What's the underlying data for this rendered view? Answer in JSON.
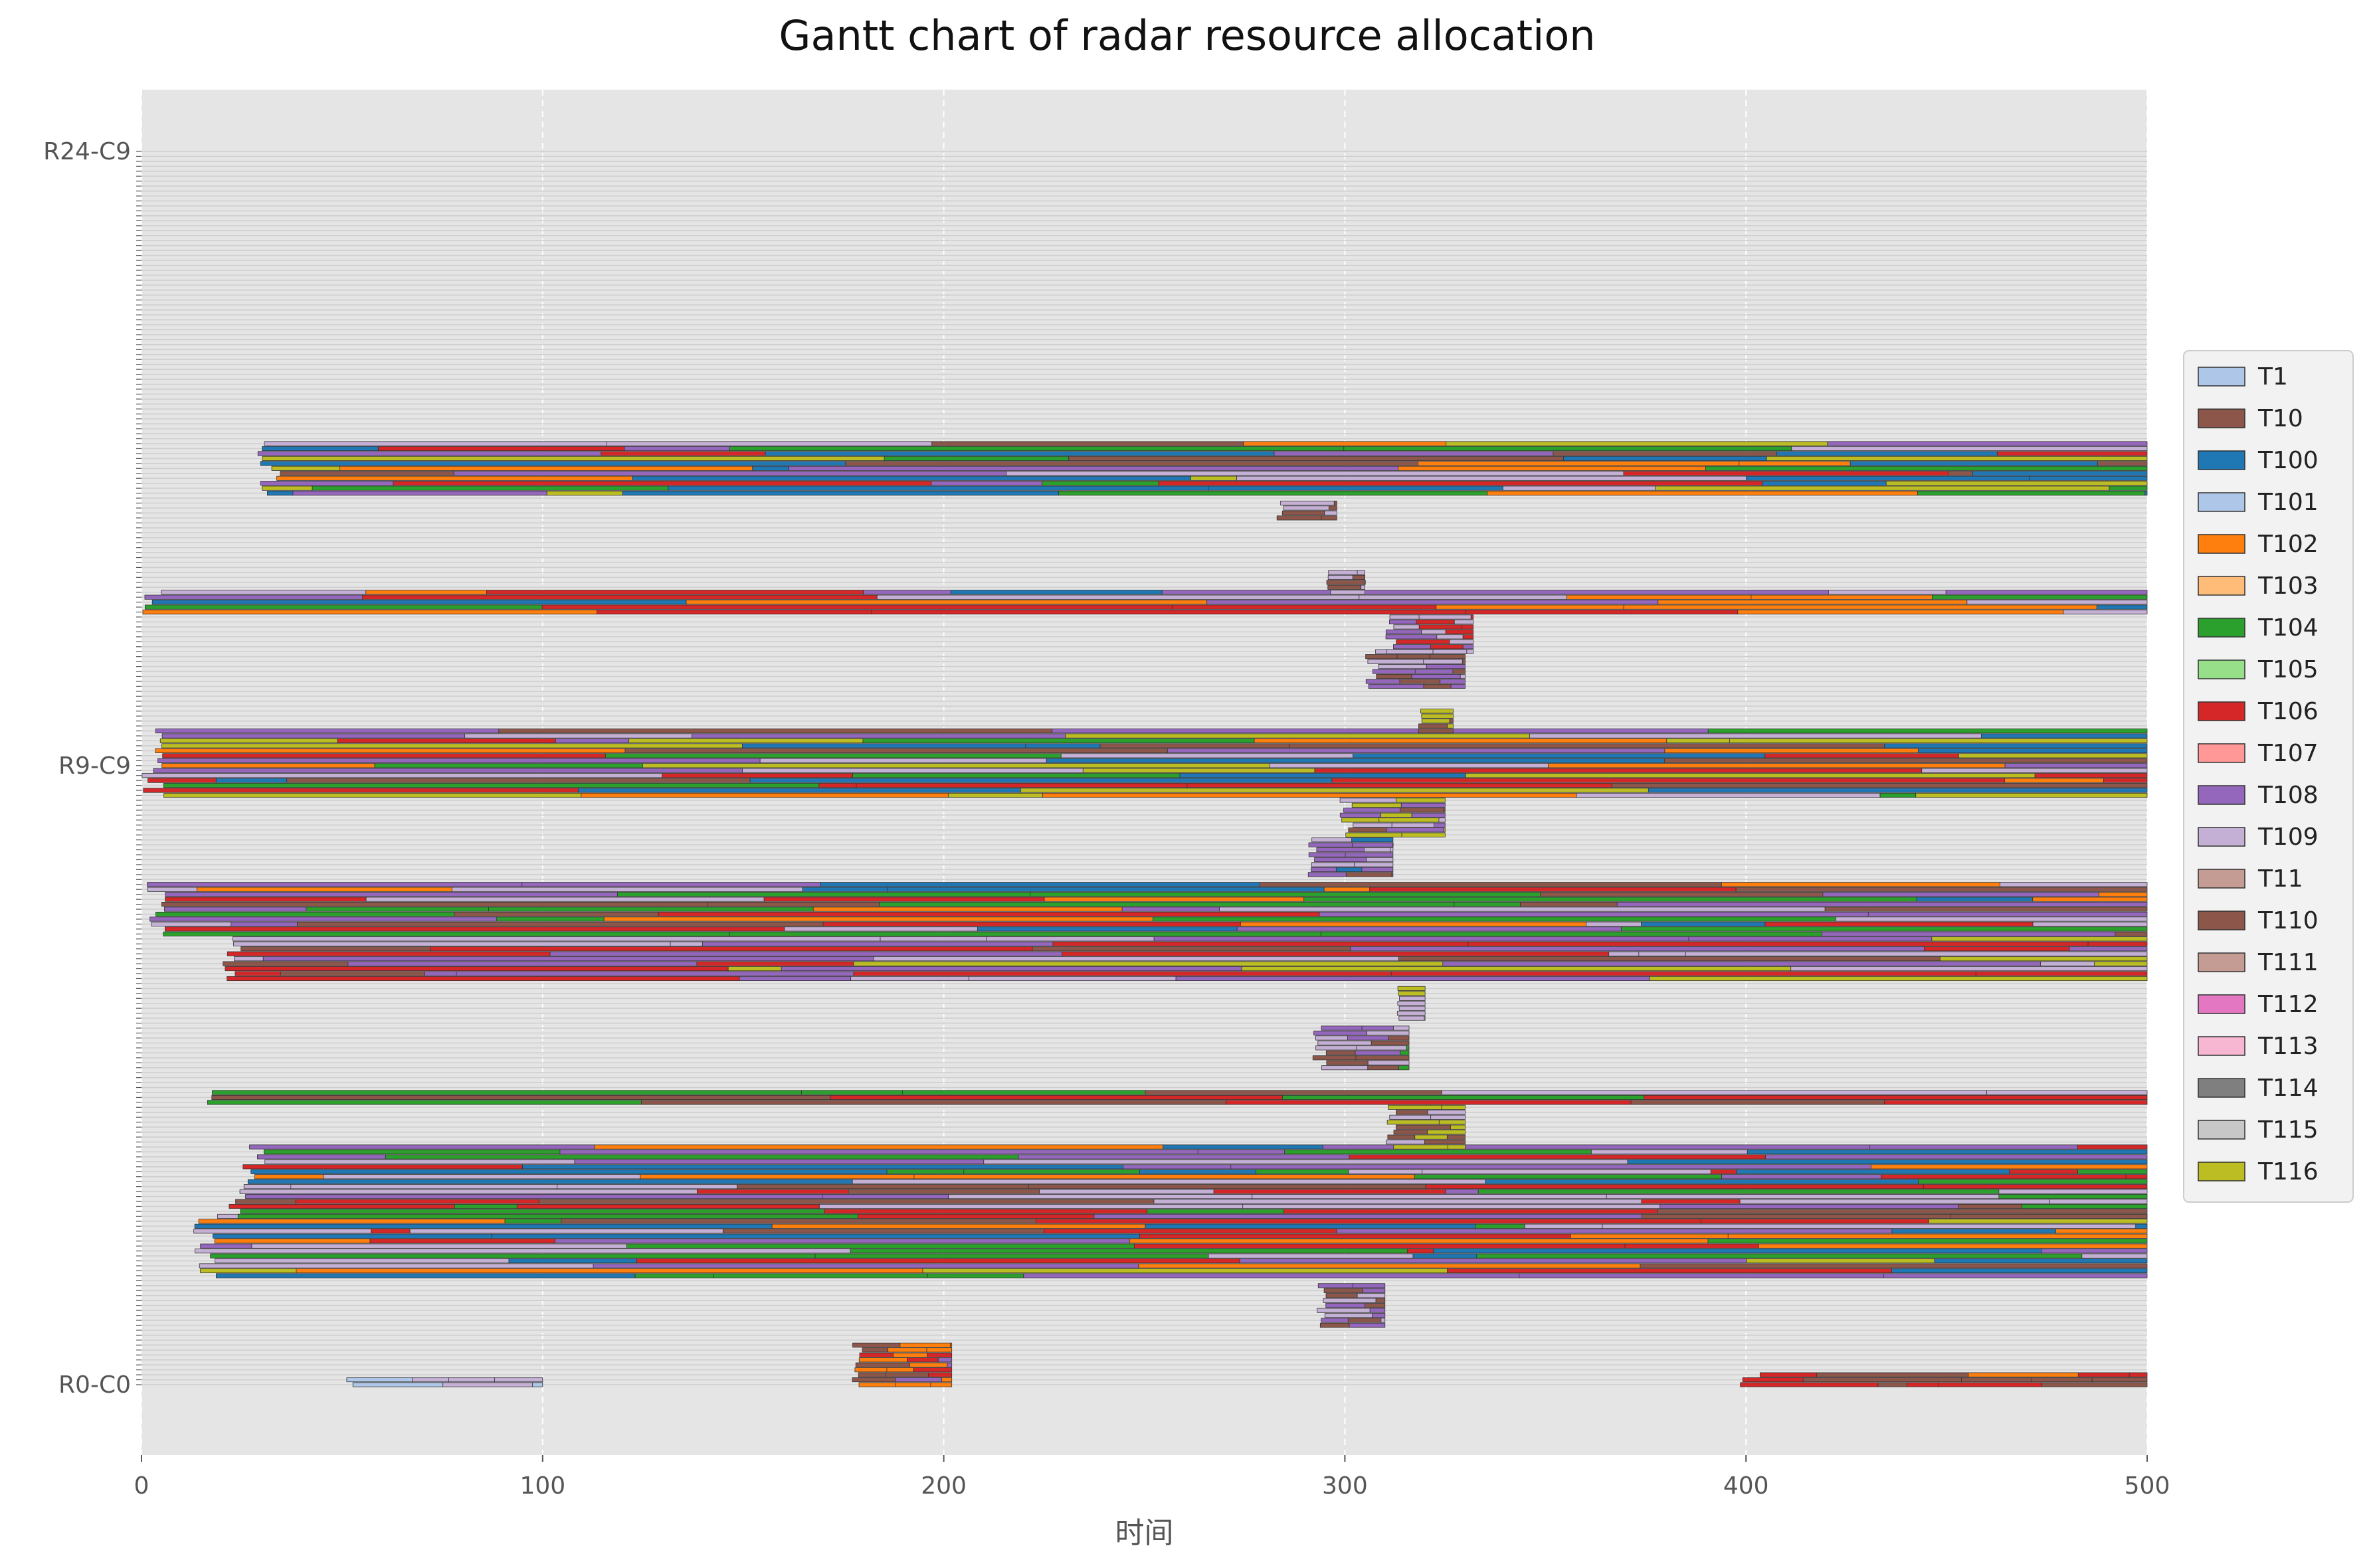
{
  "chart_data": {
    "type": "gantt",
    "title": "Gantt chart of radar resource allocation",
    "xlabel": "时间",
    "ylabel": "",
    "xlim": [
      0,
      500
    ],
    "xticks": [
      0,
      100,
      200,
      300,
      400,
      500
    ],
    "grid": true,
    "legend": {
      "placement": "right-center",
      "entries": [
        {
          "name": "T1",
          "color": "#aec7e8"
        },
        {
          "name": "T10",
          "color": "#8c564b"
        },
        {
          "name": "T100",
          "color": "#1f77b4"
        },
        {
          "name": "T101",
          "color": "#aec7e8"
        },
        {
          "name": "T102",
          "color": "#ff7f0e"
        },
        {
          "name": "T103",
          "color": "#ffbb78"
        },
        {
          "name": "T104",
          "color": "#2ca02c"
        },
        {
          "name": "T105",
          "color": "#98df8a"
        },
        {
          "name": "T106",
          "color": "#d62728"
        },
        {
          "name": "T107",
          "color": "#ff9896"
        },
        {
          "name": "T108",
          "color": "#9467bd"
        },
        {
          "name": "T109",
          "color": "#c5b0d5"
        },
        {
          "name": "T11",
          "color": "#c49c94"
        },
        {
          "name": "T110",
          "color": "#8c564b"
        },
        {
          "name": "T111",
          "color": "#c49c94"
        },
        {
          "name": "T112",
          "color": "#e377c2"
        },
        {
          "name": "T113",
          "color": "#f7b6d2"
        },
        {
          "name": "T114",
          "color": "#7f7f7f"
        },
        {
          "name": "T115",
          "color": "#c7c7c7"
        },
        {
          "name": "T116",
          "color": "#bcbd22"
        }
      ]
    },
    "ytick_labels_visible": [
      "R0-C0",
      "R9-C9",
      "R24-C9"
    ],
    "bands": [
      {
        "rows": [
          0,
          2
        ],
        "start": 398,
        "end": 500,
        "colors": [
          "#8c564b",
          "#ff7f0e",
          "#d62728"
        ]
      },
      {
        "rows": [
          0,
          1
        ],
        "start": 47,
        "end": 100,
        "colors": [
          "#aec7e8",
          "#c5b0d5"
        ]
      },
      {
        "rows": [
          0,
          8
        ],
        "start": 177,
        "end": 202,
        "colors": [
          "#8c564b",
          "#d62728",
          "#ff7f0e",
          "#9467bd"
        ]
      },
      {
        "rows": [
          12,
          20
        ],
        "start": 293,
        "end": 310,
        "colors": [
          "#9467bd",
          "#c5b0d5",
          "#8c564b"
        ]
      },
      {
        "rows": [
          22,
          34
        ],
        "start": 13,
        "end": 500,
        "colors": [
          "#ff7f0e",
          "#2ca02c",
          "#9467bd",
          "#d62728",
          "#1f77b4",
          "#c5b0d5",
          "#8c564b",
          "#bcbd22"
        ]
      },
      {
        "rows": [
          34,
          40
        ],
        "start": 20,
        "end": 500,
        "colors": [
          "#2ca02c",
          "#c5b0d5",
          "#9467bd",
          "#d62728",
          "#8c564b"
        ]
      },
      {
        "rows": [
          41,
          48
        ],
        "start": 25,
        "end": 500,
        "colors": [
          "#d62728",
          "#9467bd",
          "#2ca02c",
          "#1f77b4",
          "#c5b0d5",
          "#ff7f0e"
        ]
      },
      {
        "rows": [
          48,
          56
        ],
        "start": 310,
        "end": 330,
        "colors": [
          "#c5b0d5",
          "#8c564b",
          "#bcbd22"
        ]
      },
      {
        "rows": [
          57,
          59
        ],
        "start": 12,
        "end": 500,
        "colors": [
          "#8c564b",
          "#c5b0d5",
          "#2ca02c",
          "#d62728"
        ]
      },
      {
        "rows": [
          64,
          72
        ],
        "start": 292,
        "end": 316,
        "colors": [
          "#9467bd",
          "#c5b0d5",
          "#8c564b",
          "#2ca02c"
        ]
      },
      {
        "rows": [
          74,
          80
        ],
        "start": 313,
        "end": 320,
        "colors": [
          "#c5b0d5",
          "#bcbd22"
        ]
      },
      {
        "rows": [
          82,
          90
        ],
        "start": 20,
        "end": 500,
        "colors": [
          "#bcbd22",
          "#d62728",
          "#c5b0d5",
          "#9467bd",
          "#8c564b"
        ]
      },
      {
        "rows": [
          91,
          101
        ],
        "start": 0,
        "end": 500,
        "colors": [
          "#d62728",
          "#9467bd",
          "#2ca02c",
          "#c5b0d5",
          "#8c564b",
          "#ff7f0e",
          "#1f77b4"
        ]
      },
      {
        "rows": [
          103,
          110
        ],
        "start": 290,
        "end": 312,
        "colors": [
          "#9467bd",
          "#c5b0d5",
          "#8c564b",
          "#1f77b4"
        ]
      },
      {
        "rows": [
          111,
          118
        ],
        "start": 298,
        "end": 325,
        "colors": [
          "#c5b0d5",
          "#9467bd",
          "#8c564b",
          "#bcbd22"
        ]
      },
      {
        "rows": [
          119,
          132
        ],
        "start": 0,
        "end": 500,
        "colors": [
          "#c5b0d5",
          "#d62728",
          "#9467bd",
          "#2ca02c",
          "#8c564b",
          "#ff7f0e",
          "#1f77b4",
          "#bcbd22"
        ]
      },
      {
        "rows": [
          132,
          136
        ],
        "start": 318,
        "end": 327,
        "colors": [
          "#bcbd22",
          "#8c564b"
        ]
      },
      {
        "rows": [
          141,
          148
        ],
        "start": 305,
        "end": 330,
        "colors": [
          "#9467bd",
          "#c5b0d5",
          "#8c564b"
        ]
      },
      {
        "rows": [
          148,
          155
        ],
        "start": 310,
        "end": 332,
        "colors": [
          "#c5b0d5",
          "#9467bd",
          "#d62728"
        ]
      },
      {
        "rows": [
          156,
          160
        ],
        "start": 0,
        "end": 500,
        "colors": [
          "#c5b0d5",
          "#2ca02c",
          "#d62728",
          "#1f77b4",
          "#ff7f0e",
          "#9467bd"
        ]
      },
      {
        "rows": [
          160,
          164
        ],
        "start": 295,
        "end": 305,
        "colors": [
          "#c5b0d5",
          "#8c564b"
        ]
      },
      {
        "rows": [
          175,
          178
        ],
        "start": 283,
        "end": 298,
        "colors": [
          "#c5b0d5",
          "#8c564b"
        ]
      },
      {
        "rows": [
          180,
          190
        ],
        "start": 29,
        "end": 500,
        "colors": [
          "#d62728",
          "#ff7f0e",
          "#8c564b",
          "#2ca02c",
          "#1f77b4",
          "#9467bd",
          "#c5b0d5",
          "#bcbd22"
        ]
      }
    ]
  }
}
